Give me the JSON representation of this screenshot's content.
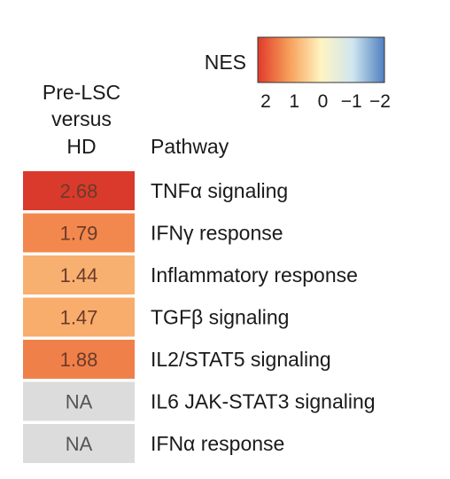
{
  "chart_data": {
    "type": "heatmap",
    "legend": {
      "title": "NES",
      "ticks": [
        "2",
        "1",
        "0",
        "−1",
        "−2"
      ],
      "range": [
        2,
        -2
      ],
      "colors": [
        "#e03a2a",
        "#f7a05a",
        "#fff4c2",
        "#cfe6f0",
        "#4f7fbf"
      ]
    },
    "column_header": [
      "Pre-LSC",
      "versus",
      "HD"
    ],
    "row_header": "Pathway",
    "na_color": "#dcdcdc",
    "rows": [
      {
        "pathway": "TNFα signaling",
        "label": "2.68",
        "value": 2.68,
        "color": "#d93a2b"
      },
      {
        "pathway": "IFNγ response",
        "label": "1.79",
        "value": 1.79,
        "color": "#f3884e"
      },
      {
        "pathway": "Inflammatory response",
        "label": "1.44",
        "value": 1.44,
        "color": "#f8b070"
      },
      {
        "pathway": "TGFβ signaling",
        "label": "1.47",
        "value": 1.47,
        "color": "#f8ad6c"
      },
      {
        "pathway": "IL2/STAT5 signaling",
        "label": "1.88",
        "value": 1.88,
        "color": "#f08049"
      },
      {
        "pathway": "IL6 JAK-STAT3 signaling",
        "label": "NA",
        "value": null,
        "color": "#dcdcdc"
      },
      {
        "pathway": "IFNα response",
        "label": "NA",
        "value": null,
        "color": "#dcdcdc"
      }
    ]
  }
}
